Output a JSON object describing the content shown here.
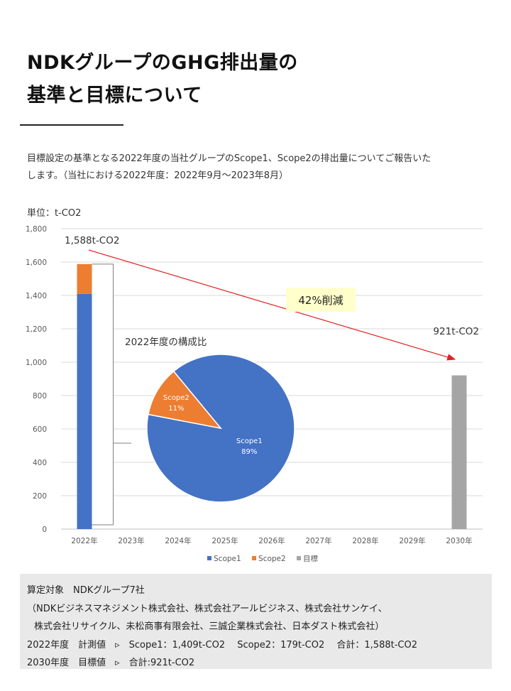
{
  "title": {
    "line1": "NDKグループのGHG排出量の",
    "line2": "基準と目標について"
  },
  "intro": {
    "line1": "目標設定の基準となる2022年度の当社グループのScope1、Scope2の排出量についてご報告いた",
    "line2": "します。（当社における2022年度：2022年9月～2023年8月）"
  },
  "unit_label": "単位：t-CO2",
  "chart_data": {
    "type": "bar",
    "stacked": true,
    "categories": [
      "2022年",
      "2023年",
      "2024年",
      "2025年",
      "2026年",
      "2027年",
      "2028年",
      "2029年",
      "2030年"
    ],
    "series": [
      {
        "name": "Scope1",
        "color": "#4472c4",
        "values": [
          1409,
          null,
          null,
          null,
          null,
          null,
          null,
          null,
          null
        ]
      },
      {
        "name": "Scope2",
        "color": "#ed7d31",
        "values": [
          179,
          null,
          null,
          null,
          null,
          null,
          null,
          null,
          null
        ]
      },
      {
        "name": "目標",
        "color": "#a5a5a5",
        "values": [
          null,
          null,
          null,
          null,
          null,
          null,
          null,
          null,
          921
        ]
      }
    ],
    "ylim": [
      0,
      1800
    ],
    "yticks": [
      "0",
      "200",
      "400",
      "600",
      "800",
      "1,000",
      "1,200",
      "1,400",
      "1,600",
      "1,800"
    ],
    "grid": true,
    "legend": "bottom",
    "annotations": {
      "start_label": "1,588t-CO2",
      "end_label": "921t-CO2",
      "reduction_label": "42%削減",
      "start_value": 1588,
      "end_value": 921
    },
    "pie": {
      "title": "2022年度の構成比",
      "slices": [
        {
          "name": "Scope1",
          "percent_label": "89%",
          "value": 89,
          "color": "#4472c4"
        },
        {
          "name": "Scope2",
          "percent_label": "11%",
          "value": 11,
          "color": "#ed7d31"
        }
      ]
    }
  },
  "info": {
    "line1": "算定対象　NDKグループ7社",
    "line2": "（NDKビジネスマネジメント株式会社、株式会社アールビジネス、株式会社サンケイ、",
    "line3": "株式会社リサイクル、未松商事有限会社、三誠企業株式会社、日本ダスト株式会社）",
    "line4": "2022年度　計測値　▹　Scope1：1,409t-CO2　 Scope2：179t-CO2　 合計：1,588t-CO2",
    "line5": "2030年度　目標値　▹　合計:921t-CO2"
  }
}
